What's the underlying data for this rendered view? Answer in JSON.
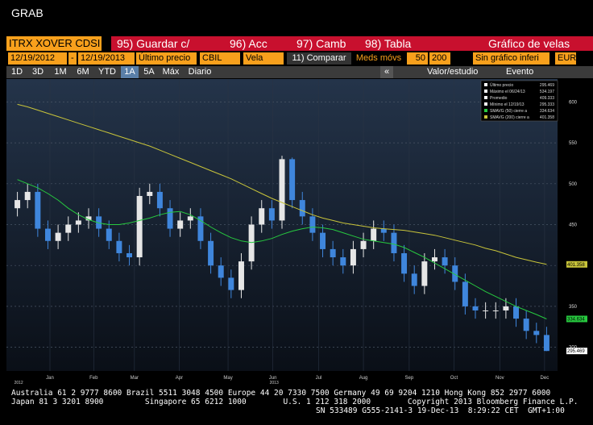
{
  "title": "GRAB",
  "toolbar": {
    "security": "ITRX XOVER CDSI",
    "tabs": [
      "95) Guardar c/",
      "96) Acc",
      "97) Camb",
      "98) Tabla"
    ],
    "view": "Gráfico de velas",
    "start": "12/19/2012",
    "sep": "-",
    "end": "12/19/2013",
    "field": "Último precio",
    "source": "CBIL",
    "style": "Vela",
    "compare": "11) Comparar",
    "ma_label": "Meds móvs",
    "ma1": "50",
    "ma2": "200",
    "lower": "Sin gráfico inferi",
    "currency": "EUR",
    "periods": [
      "1D",
      "3D",
      "1M",
      "6M",
      "YTD",
      "1A",
      "5A",
      "Máx",
      "Diario"
    ],
    "collapse": "«",
    "study": "Valor/estudio",
    "event": "Evento"
  },
  "chart_data": {
    "type": "candlestick",
    "up_color": "#e6e6e6",
    "down_color": "#3f86dc",
    "open": [
      470,
      480,
      490,
      445,
      430,
      440,
      450,
      455,
      460,
      445,
      430,
      415,
      410,
      485,
      490,
      470,
      445,
      455,
      460,
      430,
      400,
      385,
      370,
      405,
      450,
      470,
      455,
      530,
      480,
      460,
      440,
      420,
      410,
      400,
      420,
      430,
      445,
      440,
      415,
      390,
      375,
      405,
      410,
      400,
      380,
      350,
      345,
      345,
      345,
      350,
      335,
      320,
      315
    ],
    "high": [
      490,
      500,
      500,
      455,
      450,
      460,
      465,
      470,
      470,
      455,
      440,
      425,
      495,
      500,
      500,
      480,
      465,
      470,
      470,
      440,
      410,
      395,
      415,
      460,
      480,
      480,
      534.197,
      532,
      490,
      470,
      450,
      430,
      420,
      430,
      440,
      455,
      455,
      450,
      425,
      400,
      415,
      420,
      420,
      410,
      390,
      360,
      355,
      355,
      360,
      360,
      345,
      330,
      325
    ],
    "low": [
      460,
      470,
      435,
      420,
      420,
      430,
      440,
      445,
      435,
      420,
      405,
      400,
      400,
      475,
      460,
      435,
      435,
      445,
      420,
      390,
      375,
      360,
      360,
      395,
      440,
      445,
      445,
      470,
      450,
      430,
      410,
      400,
      390,
      390,
      410,
      420,
      430,
      405,
      380,
      365,
      365,
      395,
      390,
      370,
      340,
      335,
      335,
      335,
      335,
      325,
      310,
      305,
      295.333
    ],
    "close": [
      480,
      490,
      445,
      430,
      440,
      450,
      455,
      460,
      445,
      430,
      415,
      410,
      485,
      490,
      470,
      445,
      455,
      460,
      430,
      400,
      385,
      370,
      405,
      450,
      470,
      455,
      530,
      480,
      460,
      440,
      420,
      410,
      400,
      420,
      430,
      445,
      440,
      415,
      390,
      375,
      405,
      410,
      400,
      380,
      350,
      345,
      345,
      345,
      350,
      335,
      320,
      315,
      295.469
    ],
    "series": [
      {
        "color": "#27c93f",
        "values": [
          505,
          500,
          495,
          488,
          480,
          470,
          462,
          456,
          452,
          450,
          450,
          452,
          455,
          458,
          462,
          465,
          466,
          462,
          455,
          447,
          440,
          434,
          430,
          428,
          430,
          433,
          438,
          442,
          445,
          447,
          446,
          444,
          440,
          436,
          432,
          430,
          428,
          426,
          422,
          416,
          410,
          403,
          396,
          389,
          382,
          375,
          368,
          362,
          356,
          350,
          345,
          340,
          334.634
        ]
      },
      {
        "color": "#c8c43a",
        "values": [
          597,
          594,
          590,
          586,
          582,
          578,
          574,
          570,
          566,
          562,
          558,
          554,
          550,
          546,
          541,
          536,
          531,
          526,
          521,
          516,
          511,
          506,
          500,
          494,
          488,
          482,
          477,
          472,
          467,
          462,
          458,
          455,
          452,
          450,
          448,
          446,
          445,
          444,
          443,
          441,
          439,
          437,
          434,
          431,
          428,
          425,
          421,
          418,
          414,
          410,
          407,
          404,
          401.358
        ]
      }
    ],
    "ylim": [
      271,
      628
    ],
    "yticks": [
      300,
      350,
      400,
      450,
      500,
      550,
      600
    ],
    "xlim": [
      -0.6,
      52.6
    ],
    "xticks": [
      {
        "value": 3.2,
        "label": "Jan"
      },
      {
        "value": 7.5,
        "label": "Feb"
      },
      {
        "value": 11.5,
        "label": "Mar"
      },
      {
        "value": 15.9,
        "label": "Apr"
      },
      {
        "value": 20.7,
        "label": "May"
      },
      {
        "value": 25.1,
        "label": "Jun"
      },
      {
        "value": 29.6,
        "label": "Jul"
      },
      {
        "value": 34.0,
        "label": "Aug"
      },
      {
        "value": 38.5,
        "label": "Sep"
      },
      {
        "value": 42.9,
        "label": "Oct"
      },
      {
        "value": 47.4,
        "label": "Nov"
      },
      {
        "value": 51.8,
        "label": "Dec"
      }
    ],
    "year_labels": [
      {
        "value": 0,
        "label": "2012"
      },
      {
        "value": 25.1,
        "label": "2013"
      }
    ],
    "legend": [
      {
        "label": "Último precio",
        "value": 295.469
      },
      {
        "label": "Máximo el 06/24/13",
        "value": 534.197
      },
      {
        "label": "Promedio",
        "value": 409.333
      },
      {
        "label": "Mínimo el 12/19/13",
        "value": 295.333
      },
      {
        "label": "SMAVG (50) cierre a",
        "value": 334.634
      },
      {
        "label": "SMAVG (200) cierre a",
        "value": 401.358
      }
    ]
  },
  "footer": [
    "Australia 61 2 9777 8600 Brazil 5511 3048 4500 Europe 44 20 7330 7500 Germany 49 69 9204 1210 Hong Kong 852 2977 6000",
    "Japan 81 3 3201 8900         Singapore 65 6212 1000        U.S. 1 212 318 2000        Copyright 2013 Bloomberg Finance L.P.",
    "SN 533489 G555-2141-3 19-Dec-13  8:29:22 CET  GMT+1:00"
  ]
}
